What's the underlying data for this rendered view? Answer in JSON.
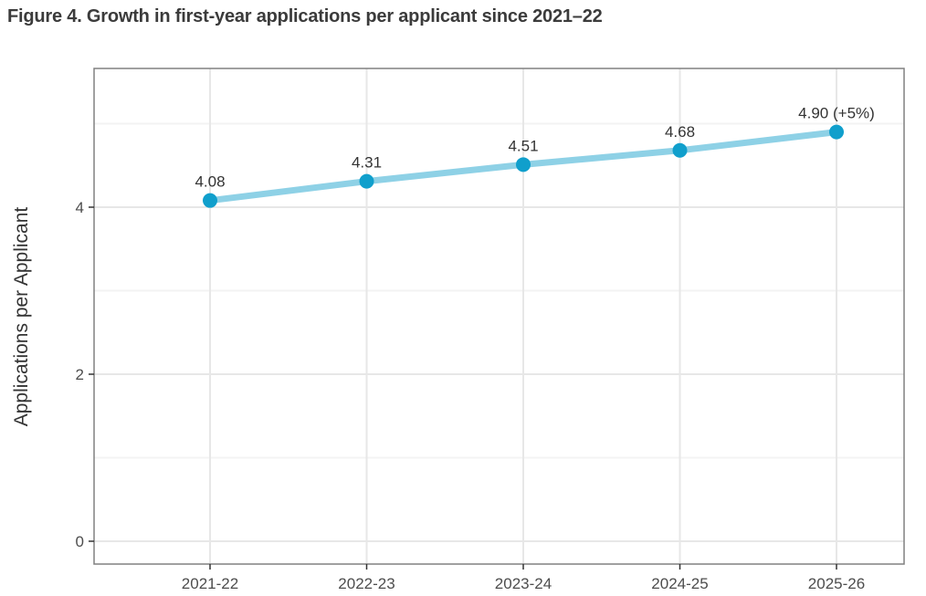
{
  "figure": {
    "title": "Figure 4. Growth in first-year applications per applicant since 2021–22"
  },
  "colors": {
    "line": "#8ed1e6",
    "point": "#109fcc",
    "grid_major": "#e7e7e7",
    "grid_minor": "#f3f3f3",
    "panel_border": "#808080",
    "panel_background": "#ffffff",
    "tick_mark": "#333333",
    "tick_label": "#4d4d4d",
    "data_label": "#333333",
    "axis_title": "#333333"
  },
  "chart_data": {
    "type": "line",
    "title": "Figure 4. Growth in first-year applications per applicant since 2021–22",
    "categories": [
      "2021-22",
      "2022-23",
      "2023-24",
      "2024-25",
      "2025-26"
    ],
    "series": [
      {
        "name": "Applications per Applicant",
        "values": [
          4.08,
          4.31,
          4.51,
          4.68,
          4.9
        ],
        "point_labels": [
          "4.08",
          "4.31",
          "4.51",
          "4.68",
          "4.90 (+5%)"
        ]
      }
    ],
    "xlabel": "",
    "ylabel": "Applications per Applicant",
    "ylim": [
      0,
      5.7
    ],
    "yticks": [
      0,
      2,
      4
    ],
    "yticks_minor": [
      1,
      3,
      5
    ],
    "grid": true,
    "legend": "none",
    "annotation_last_point": "+5% growth vs prior year"
  }
}
